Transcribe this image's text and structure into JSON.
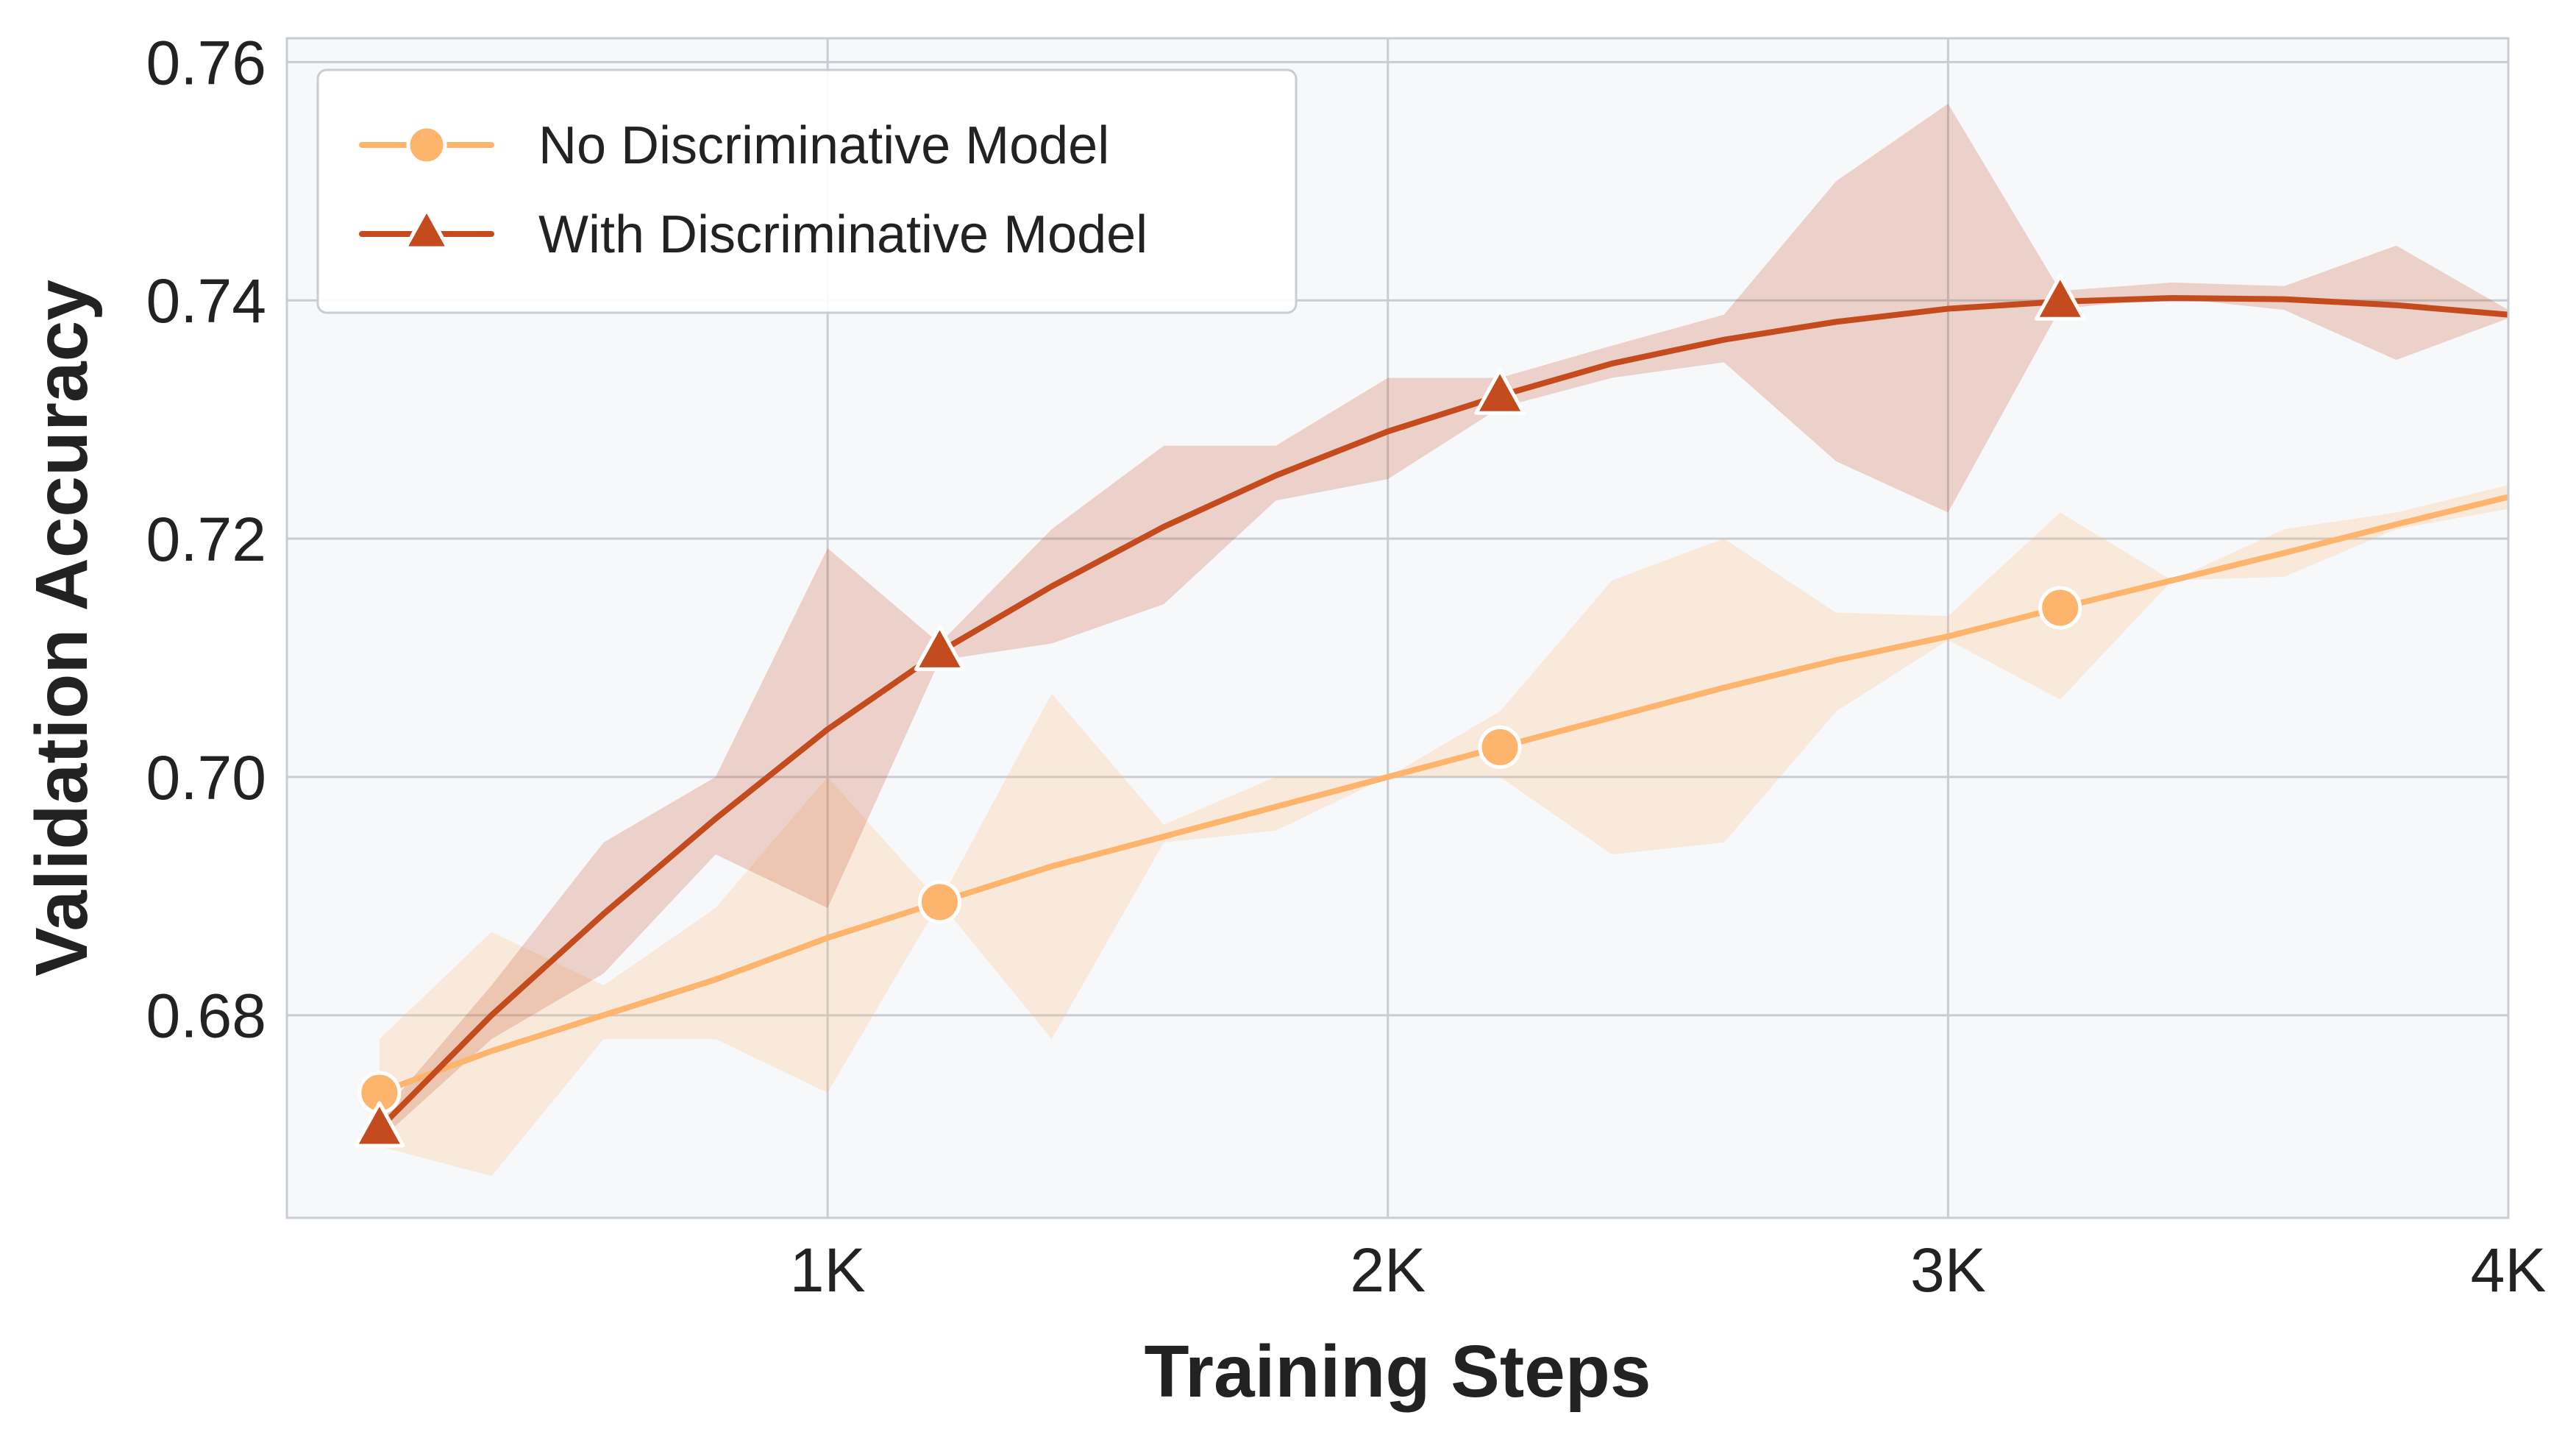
{
  "chart_data": {
    "type": "line",
    "title": "",
    "xlabel": "Training Steps",
    "ylabel": "Validation Accuracy",
    "xlim": [
      0,
      4000
    ],
    "ylim": [
      0.663,
      0.762
    ],
    "grid": true,
    "legend_position": "top-left",
    "xticks": [
      {
        "value": 1000,
        "label": "1K"
      },
      {
        "value": 2000,
        "label": "2K"
      },
      {
        "value": 3000,
        "label": "3K"
      },
      {
        "value": 4000,
        "label": "4K"
      }
    ],
    "yticks": [
      {
        "value": 0.68,
        "label": "0.68"
      },
      {
        "value": 0.7,
        "label": "0.70"
      },
      {
        "value": 0.72,
        "label": "0.72"
      },
      {
        "value": 0.74,
        "label": "0.74"
      },
      {
        "value": 0.76,
        "label": "0.76"
      }
    ],
    "x": [
      200,
      400,
      600,
      800,
      1000,
      1200,
      1400,
      1600,
      1800,
      2000,
      2200,
      2400,
      2600,
      2800,
      3000,
      3200,
      3400,
      3600,
      3800,
      4000
    ],
    "series": [
      {
        "name": "No Discriminative Model",
        "color": "#fdb46c",
        "marker": "circle",
        "marker_x": [
          200,
          1200,
          2200,
          3200
        ],
        "values": [
          0.6735,
          0.677,
          0.68,
          0.683,
          0.6865,
          0.6895,
          0.6925,
          0.695,
          0.6975,
          0.7,
          0.7025,
          0.705,
          0.7075,
          0.7098,
          0.7118,
          0.7142,
          0.7165,
          0.7188,
          0.7212,
          0.7235
        ],
        "band_lower": [
          0.669,
          0.6665,
          0.678,
          0.678,
          0.6735,
          0.6895,
          0.678,
          0.6945,
          0.6955,
          0.7,
          0.7,
          0.6935,
          0.6945,
          0.7055,
          0.7115,
          0.7065,
          0.7165,
          0.7168,
          0.7208,
          0.7225
        ],
        "band_upper": [
          0.678,
          0.687,
          0.6825,
          0.689,
          0.7,
          0.6895,
          0.707,
          0.696,
          0.7,
          0.7,
          0.7055,
          0.7165,
          0.72,
          0.7138,
          0.7135,
          0.7222,
          0.7165,
          0.7208,
          0.7222,
          0.7245
        ]
      },
      {
        "name": "With Discriminative Model",
        "color": "#c44b1d",
        "marker": "triangle",
        "marker_x": [
          200,
          1200,
          2200,
          3200
        ],
        "values": [
          0.6705,
          0.68,
          0.6885,
          0.6965,
          0.704,
          0.7105,
          0.716,
          0.721,
          0.7253,
          0.729,
          0.732,
          0.7347,
          0.7367,
          0.7382,
          0.7393,
          0.7399,
          0.7402,
          0.7401,
          0.7396,
          0.7388
        ],
        "band_lower": [
          0.6695,
          0.678,
          0.6835,
          0.6935,
          0.689,
          0.7098,
          0.7112,
          0.7145,
          0.7232,
          0.725,
          0.731,
          0.7335,
          0.7348,
          0.7265,
          0.7222,
          0.7393,
          0.7402,
          0.7392,
          0.735,
          0.7385
        ],
        "band_upper": [
          0.6715,
          0.6825,
          0.6945,
          0.7,
          0.7192,
          0.7112,
          0.7208,
          0.7278,
          0.7278,
          0.7335,
          0.7335,
          0.7362,
          0.7388,
          0.75,
          0.7565,
          0.7408,
          0.7415,
          0.7412,
          0.7446,
          0.7392
        ]
      }
    ]
  },
  "colors": {
    "plot_background": "#f7f8fa",
    "grid": "#c8ccd3",
    "frame": "#c8ccd3",
    "legend_border": "#c8ccd3"
  }
}
